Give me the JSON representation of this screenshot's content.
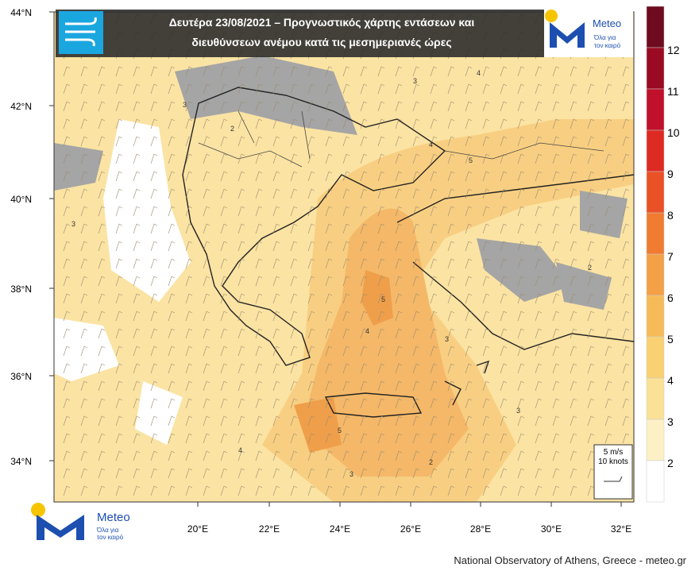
{
  "header": {
    "title_line_1": "Δευτέρα 23/08/2021 – Προγνωστικός χάρτης εντάσεων και",
    "title_line_2": "διευθύνσεων ανέμου κατά τις μεσημεριανές ώρες"
  },
  "logo": {
    "name": "Meteo",
    "tagline_1": "Όλα για",
    "tagline_2": "τον καιρό"
  },
  "map": {
    "lat_labels": [
      "44°N",
      "42°N",
      "40°N",
      "38°N",
      "36°N",
      "34°N"
    ],
    "lon_labels": [
      "20°E",
      "22°E",
      "24°E",
      "26°E",
      "28°E",
      "30°E",
      "32°E"
    ],
    "contour_labels": [
      "2",
      "3",
      "3",
      "4",
      "5",
      "4",
      "3",
      "2",
      "5",
      "4",
      "3",
      "3",
      "2",
      "5",
      "4",
      "3"
    ],
    "reference_vector": {
      "line_1": "5 m/s",
      "line_2": "10 knots"
    }
  },
  "colorbar": {
    "labels": [
      "12",
      "11",
      "10",
      "9",
      "8",
      "7",
      "6",
      "5",
      "4",
      "3",
      "2"
    ],
    "colors": [
      "#6e0b1f",
      "#9a0a22",
      "#c0102b",
      "#dd2a22",
      "#ea5126",
      "#f07c31",
      "#f3a046",
      "#f6bb58",
      "#f9d072",
      "#fbe196",
      "#fdf0c4",
      "#ffffff"
    ]
  },
  "footer": "National Observatory of Athens, Greece - meteo.gr"
}
